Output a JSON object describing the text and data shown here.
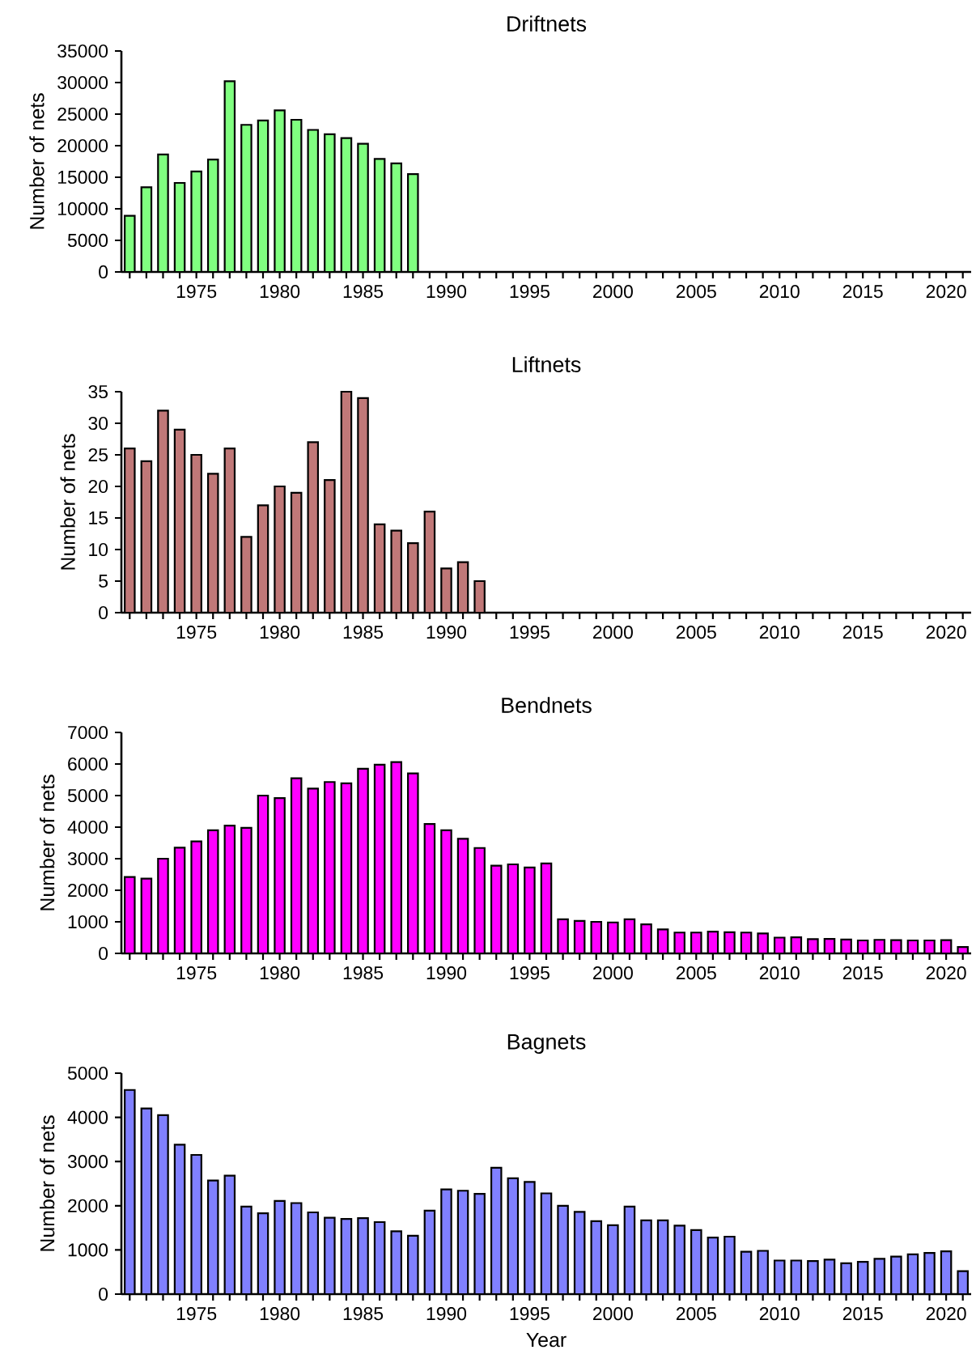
{
  "chart_data": [
    {
      "type": "bar",
      "title": "Driftnets",
      "ylabel": "Number of nets",
      "color": "#80ff80",
      "x": [
        1971,
        1972,
        1973,
        1974,
        1975,
        1976,
        1977,
        1978,
        1979,
        1980,
        1981,
        1982,
        1983,
        1984,
        1985,
        1986,
        1987,
        1988
      ],
      "values": [
        8900,
        13400,
        18600,
        14100,
        15900,
        17800,
        30200,
        23300,
        24000,
        25600,
        24100,
        22500,
        21800,
        21200,
        20300,
        17900,
        17200,
        15500
      ],
      "xlim": [
        1970.5,
        2021.5
      ],
      "ylim": [
        0,
        35000
      ],
      "yticks": [
        0,
        5000,
        10000,
        15000,
        20000,
        25000,
        30000,
        35000
      ],
      "xticks": [
        {
          "value": 1971,
          "label": null
        },
        {
          "value": 1972,
          "label": null
        },
        {
          "value": 1973,
          "label": null
        },
        {
          "value": 1974,
          "label": null
        },
        1975,
        {
          "value": 1976,
          "label": null
        },
        {
          "value": 1977,
          "label": null
        },
        {
          "value": 1978,
          "label": null
        },
        {
          "value": 1979,
          "label": null
        },
        1980,
        {
          "value": 1981,
          "label": null
        },
        {
          "value": 1982,
          "label": null
        },
        {
          "value": 1983,
          "label": null
        },
        {
          "value": 1984,
          "label": null
        },
        1985,
        {
          "value": 1986,
          "label": null
        },
        {
          "value": 1987,
          "label": null
        },
        {
          "value": 1988,
          "label": null
        },
        {
          "value": 1989,
          "label": null
        },
        1990,
        {
          "value": 1991,
          "label": null
        },
        {
          "value": 1992,
          "label": null
        },
        {
          "value": 1993,
          "label": null
        },
        {
          "value": 1994,
          "label": null
        },
        1995,
        {
          "value": 1996,
          "label": null
        },
        {
          "value": 1997,
          "label": null
        },
        {
          "value": 1998,
          "label": null
        },
        {
          "value": 1999,
          "label": null
        },
        2000,
        {
          "value": 2001,
          "label": null
        },
        {
          "value": 2002,
          "label": null
        },
        {
          "value": 2003,
          "label": null
        },
        {
          "value": 2004,
          "label": null
        },
        2005,
        {
          "value": 2006,
          "label": null
        },
        {
          "value": 2007,
          "label": null
        },
        {
          "value": 2008,
          "label": null
        },
        {
          "value": 2009,
          "label": null
        },
        2010,
        {
          "value": 2011,
          "label": null
        },
        {
          "value": 2012,
          "label": null
        },
        {
          "value": 2013,
          "label": null
        },
        {
          "value": 2014,
          "label": null
        },
        2015,
        {
          "value": 2016,
          "label": null
        },
        {
          "value": 2017,
          "label": null
        },
        {
          "value": 2018,
          "label": null
        },
        {
          "value": 2019,
          "label": null
        },
        2020,
        {
          "value": 2021,
          "label": null
        }
      ]
    },
    {
      "type": "bar",
      "title": "Liftnets",
      "ylabel": "Number of nets",
      "color": "#c07878",
      "x": [
        1971,
        1972,
        1973,
        1974,
        1975,
        1976,
        1977,
        1978,
        1979,
        1980,
        1981,
        1982,
        1983,
        1984,
        1985,
        1986,
        1987,
        1988,
        1989,
        1990,
        1991,
        1992
      ],
      "values": [
        26,
        24,
        32,
        29,
        25,
        22,
        26,
        12,
        17,
        20,
        19,
        27,
        21,
        35,
        34,
        14,
        13,
        11,
        16,
        7,
        8,
        5
      ],
      "xlim": [
        1970.5,
        2021.5
      ],
      "ylim": [
        0,
        35
      ],
      "yticks": [
        0,
        5,
        10,
        15,
        20,
        25,
        30,
        35
      ],
      "xticks": [
        {
          "value": 1971,
          "label": null
        },
        {
          "value": 1972,
          "label": null
        },
        {
          "value": 1973,
          "label": null
        },
        {
          "value": 1974,
          "label": null
        },
        1975,
        {
          "value": 1976,
          "label": null
        },
        {
          "value": 1977,
          "label": null
        },
        {
          "value": 1978,
          "label": null
        },
        {
          "value": 1979,
          "label": null
        },
        1980,
        {
          "value": 1981,
          "label": null
        },
        {
          "value": 1982,
          "label": null
        },
        {
          "value": 1983,
          "label": null
        },
        {
          "value": 1984,
          "label": null
        },
        1985,
        {
          "value": 1986,
          "label": null
        },
        {
          "value": 1987,
          "label": null
        },
        {
          "value": 1988,
          "label": null
        },
        {
          "value": 1989,
          "label": null
        },
        1990,
        {
          "value": 1991,
          "label": null
        },
        {
          "value": 1992,
          "label": null
        },
        {
          "value": 1993,
          "label": null
        },
        {
          "value": 1994,
          "label": null
        },
        1995,
        {
          "value": 1996,
          "label": null
        },
        {
          "value": 1997,
          "label": null
        },
        {
          "value": 1998,
          "label": null
        },
        {
          "value": 1999,
          "label": null
        },
        2000,
        {
          "value": 2001,
          "label": null
        },
        {
          "value": 2002,
          "label": null
        },
        {
          "value": 2003,
          "label": null
        },
        {
          "value": 2004,
          "label": null
        },
        2005,
        {
          "value": 2006,
          "label": null
        },
        {
          "value": 2007,
          "label": null
        },
        {
          "value": 2008,
          "label": null
        },
        {
          "value": 2009,
          "label": null
        },
        2010,
        {
          "value": 2011,
          "label": null
        },
        {
          "value": 2012,
          "label": null
        },
        {
          "value": 2013,
          "label": null
        },
        {
          "value": 2014,
          "label": null
        },
        2015,
        {
          "value": 2016,
          "label": null
        },
        {
          "value": 2017,
          "label": null
        },
        {
          "value": 2018,
          "label": null
        },
        {
          "value": 2019,
          "label": null
        },
        2020,
        {
          "value": 2021,
          "label": null
        }
      ]
    },
    {
      "type": "bar",
      "title": "Bendnets",
      "ylabel": "Number of nets",
      "color": "#ff00ff",
      "x": [
        1971,
        1972,
        1973,
        1974,
        1975,
        1976,
        1977,
        1978,
        1979,
        1980,
        1981,
        1982,
        1983,
        1984,
        1985,
        1986,
        1987,
        1988,
        1989,
        1990,
        1991,
        1992,
        1993,
        1994,
        1995,
        1996,
        1997,
        1998,
        1999,
        2000,
        2001,
        2002,
        2003,
        2004,
        2005,
        2006,
        2007,
        2008,
        2009,
        2010,
        2011,
        2012,
        2013,
        2014,
        2015,
        2016,
        2017,
        2018,
        2019,
        2020,
        2021
      ],
      "values": [
        2420,
        2370,
        3000,
        3350,
        3550,
        3900,
        4050,
        3980,
        5000,
        4920,
        5550,
        5220,
        5430,
        5390,
        5850,
        5980,
        6060,
        5700,
        4100,
        3900,
        3630,
        3340,
        2780,
        2820,
        2720,
        2850,
        1080,
        1030,
        1000,
        980,
        1080,
        920,
        760,
        660,
        660,
        690,
        670,
        660,
        630,
        500,
        510,
        450,
        460,
        440,
        410,
        430,
        420,
        410,
        410,
        420,
        200
      ],
      "xlim": [
        1970.5,
        2021.5
      ],
      "ylim": [
        0,
        7000
      ],
      "yticks": [
        0,
        1000,
        2000,
        3000,
        4000,
        5000,
        6000,
        7000
      ],
      "xticks": [
        {
          "value": 1971,
          "label": null
        },
        {
          "value": 1972,
          "label": null
        },
        {
          "value": 1973,
          "label": null
        },
        {
          "value": 1974,
          "label": null
        },
        1975,
        {
          "value": 1976,
          "label": null
        },
        {
          "value": 1977,
          "label": null
        },
        {
          "value": 1978,
          "label": null
        },
        {
          "value": 1979,
          "label": null
        },
        1980,
        {
          "value": 1981,
          "label": null
        },
        {
          "value": 1982,
          "label": null
        },
        {
          "value": 1983,
          "label": null
        },
        {
          "value": 1984,
          "label": null
        },
        1985,
        {
          "value": 1986,
          "label": null
        },
        {
          "value": 1987,
          "label": null
        },
        {
          "value": 1988,
          "label": null
        },
        {
          "value": 1989,
          "label": null
        },
        1990,
        {
          "value": 1991,
          "label": null
        },
        {
          "value": 1992,
          "label": null
        },
        {
          "value": 1993,
          "label": null
        },
        {
          "value": 1994,
          "label": null
        },
        1995,
        {
          "value": 1996,
          "label": null
        },
        {
          "value": 1997,
          "label": null
        },
        {
          "value": 1998,
          "label": null
        },
        {
          "value": 1999,
          "label": null
        },
        2000,
        {
          "value": 2001,
          "label": null
        },
        {
          "value": 2002,
          "label": null
        },
        {
          "value": 2003,
          "label": null
        },
        {
          "value": 2004,
          "label": null
        },
        2005,
        {
          "value": 2006,
          "label": null
        },
        {
          "value": 2007,
          "label": null
        },
        {
          "value": 2008,
          "label": null
        },
        {
          "value": 2009,
          "label": null
        },
        2010,
        {
          "value": 2011,
          "label": null
        },
        {
          "value": 2012,
          "label": null
        },
        {
          "value": 2013,
          "label": null
        },
        {
          "value": 2014,
          "label": null
        },
        2015,
        {
          "value": 2016,
          "label": null
        },
        {
          "value": 2017,
          "label": null
        },
        {
          "value": 2018,
          "label": null
        },
        {
          "value": 2019,
          "label": null
        },
        2020,
        {
          "value": 2021,
          "label": null
        }
      ]
    },
    {
      "type": "bar",
      "title": "Bagnets",
      "ylabel": "Number of nets",
      "xlabel": "Year",
      "color": "#8080ff",
      "x": [
        1971,
        1972,
        1973,
        1974,
        1975,
        1976,
        1977,
        1978,
        1979,
        1980,
        1981,
        1982,
        1983,
        1984,
        1985,
        1986,
        1987,
        1988,
        1989,
        1990,
        1991,
        1992,
        1993,
        1994,
        1995,
        1996,
        1997,
        1998,
        1999,
        2000,
        2001,
        2002,
        2003,
        2004,
        2005,
        2006,
        2007,
        2008,
        2009,
        2010,
        2011,
        2012,
        2013,
        2014,
        2015,
        2016,
        2017,
        2018,
        2019,
        2020,
        2021
      ],
      "values": [
        4620,
        4200,
        4050,
        3380,
        3150,
        2570,
        2680,
        1980,
        1830,
        2110,
        2060,
        1850,
        1730,
        1700,
        1720,
        1630,
        1420,
        1320,
        1890,
        2370,
        2340,
        2270,
        2860,
        2620,
        2540,
        2280,
        2000,
        1860,
        1650,
        1560,
        1980,
        1670,
        1670,
        1550,
        1450,
        1280,
        1300,
        960,
        980,
        760,
        760,
        750,
        780,
        700,
        730,
        800,
        850,
        900,
        930,
        970,
        520
      ],
      "xlim": [
        1970.5,
        2021.5
      ],
      "ylim": [
        0,
        5000
      ],
      "yticks": [
        0,
        1000,
        2000,
        3000,
        4000,
        5000
      ],
      "xticks": [
        {
          "value": 1971,
          "label": null
        },
        {
          "value": 1972,
          "label": null
        },
        {
          "value": 1973,
          "label": null
        },
        {
          "value": 1974,
          "label": null
        },
        1975,
        {
          "value": 1976,
          "label": null
        },
        {
          "value": 1977,
          "label": null
        },
        {
          "value": 1978,
          "label": null
        },
        {
          "value": 1979,
          "label": null
        },
        1980,
        {
          "value": 1981,
          "label": null
        },
        {
          "value": 1982,
          "label": null
        },
        {
          "value": 1983,
          "label": null
        },
        {
          "value": 1984,
          "label": null
        },
        1985,
        {
          "value": 1986,
          "label": null
        },
        {
          "value": 1987,
          "label": null
        },
        {
          "value": 1988,
          "label": null
        },
        {
          "value": 1989,
          "label": null
        },
        1990,
        {
          "value": 1991,
          "label": null
        },
        {
          "value": 1992,
          "label": null
        },
        {
          "value": 1993,
          "label": null
        },
        {
          "value": 1994,
          "label": null
        },
        1995,
        {
          "value": 1996,
          "label": null
        },
        {
          "value": 1997,
          "label": null
        },
        {
          "value": 1998,
          "label": null
        },
        {
          "value": 1999,
          "label": null
        },
        2000,
        {
          "value": 2001,
          "label": null
        },
        {
          "value": 2002,
          "label": null
        },
        {
          "value": 2003,
          "label": null
        },
        {
          "value": 2004,
          "label": null
        },
        2005,
        {
          "value": 2006,
          "label": null
        },
        {
          "value": 2007,
          "label": null
        },
        {
          "value": 2008,
          "label": null
        },
        {
          "value": 2009,
          "label": null
        },
        2010,
        {
          "value": 2011,
          "label": null
        },
        {
          "value": 2012,
          "label": null
        },
        {
          "value": 2013,
          "label": null
        },
        {
          "value": 2014,
          "label": null
        },
        2015,
        {
          "value": 2016,
          "label": null
        },
        {
          "value": 2017,
          "label": null
        },
        {
          "value": 2018,
          "label": null
        },
        {
          "value": 2019,
          "label": null
        },
        2020,
        {
          "value": 2021,
          "label": null
        }
      ]
    }
  ]
}
